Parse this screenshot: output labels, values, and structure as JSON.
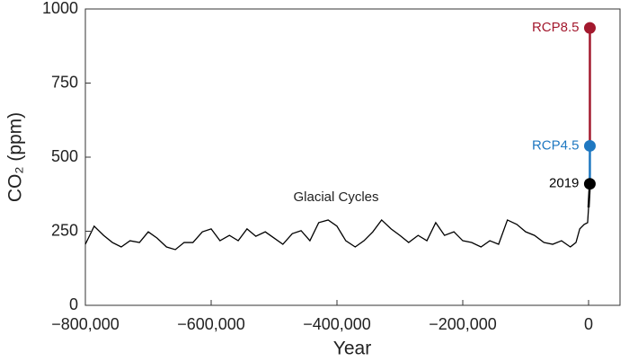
{
  "chart_data": {
    "type": "line",
    "xlabel": "Year",
    "ylabel": "CO₂ (ppm)",
    "xlim": [
      -800000,
      50000
    ],
    "ylim": [
      0,
      1000
    ],
    "xticks": [
      {
        "value": -800000,
        "label": "−800,000"
      },
      {
        "value": -600000,
        "label": "−600,000"
      },
      {
        "value": -400000,
        "label": "−400,000"
      },
      {
        "value": -200000,
        "label": "−200,000"
      },
      0
    ],
    "yticks": [
      0,
      250,
      500,
      750,
      1000
    ],
    "series": [
      {
        "name": "Glacial Cycles",
        "color": "#000000",
        "x": [
          -800000,
          -786000,
          -771000,
          -757000,
          -743000,
          -729000,
          -714000,
          -700000,
          -686000,
          -671000,
          -657000,
          -643000,
          -629000,
          -614000,
          -600000,
          -586000,
          -571000,
          -557000,
          -543000,
          -529000,
          -514000,
          -500000,
          -486000,
          -471000,
          -457000,
          -443000,
          -429000,
          -414000,
          -400000,
          -386000,
          -371000,
          -357000,
          -343000,
          -329000,
          -314000,
          -300000,
          -286000,
          -271000,
          -257000,
          -243000,
          -229000,
          -214000,
          -200000,
          -186000,
          -171000,
          -157000,
          -143000,
          -129000,
          -114000,
          -100000,
          -86000,
          -71000,
          -57000,
          -43000,
          -29000,
          -20000,
          -14000,
          -7000,
          -1500,
          0
        ],
        "values": [
          206,
          267,
          236,
          212,
          197,
          218,
          212,
          248,
          227,
          197,
          188,
          212,
          212,
          248,
          258,
          218,
          236,
          218,
          258,
          233,
          248,
          227,
          206,
          242,
          252,
          218,
          279,
          288,
          267,
          218,
          197,
          218,
          248,
          288,
          258,
          236,
          212,
          236,
          218,
          279,
          236,
          248,
          218,
          212,
          197,
          218,
          206,
          288,
          273,
          248,
          236,
          212,
          206,
          218,
          197,
          212,
          258,
          273,
          279,
          330
        ]
      }
    ],
    "markers": [
      {
        "label": "2019",
        "x": 2019,
        "value": 410,
        "color": "#000000"
      },
      {
        "label": "RCP4.5",
        "x": 2100,
        "value": 538,
        "color": "#1f78c1"
      },
      {
        "label": "RCP8.5",
        "x": 2100,
        "value": 936,
        "color": "#a3192e"
      }
    ]
  }
}
